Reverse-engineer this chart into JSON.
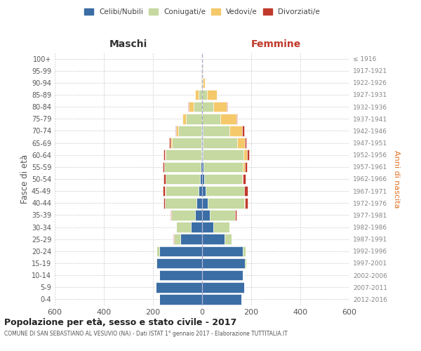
{
  "age_groups": [
    "0-4",
    "5-9",
    "10-14",
    "15-19",
    "20-24",
    "25-29",
    "30-34",
    "35-39",
    "40-44",
    "45-49",
    "50-54",
    "55-59",
    "60-64",
    "65-69",
    "70-74",
    "75-79",
    "80-84",
    "85-89",
    "90-94",
    "95-99",
    "100+"
  ],
  "birth_years": [
    "2012-2016",
    "2007-2011",
    "2002-2006",
    "1997-2001",
    "1992-1996",
    "1987-1991",
    "1982-1986",
    "1977-1981",
    "1972-1976",
    "1967-1971",
    "1962-1966",
    "1957-1961",
    "1952-1956",
    "1947-1951",
    "1942-1946",
    "1937-1941",
    "1932-1936",
    "1927-1931",
    "1922-1926",
    "1917-1921",
    "≤ 1916"
  ],
  "male": {
    "celibi": [
      175,
      190,
      175,
      185,
      175,
      90,
      45,
      30,
      22,
      15,
      8,
      5,
      4,
      3,
      2,
      0,
      0,
      0,
      0,
      0,
      0
    ],
    "coniugati": [
      0,
      0,
      0,
      5,
      10,
      25,
      60,
      95,
      130,
      135,
      140,
      148,
      145,
      120,
      95,
      65,
      35,
      15,
      2,
      1,
      0
    ],
    "vedovi": [
      0,
      0,
      0,
      0,
      0,
      0,
      0,
      0,
      0,
      1,
      1,
      2,
      3,
      6,
      10,
      15,
      20,
      15,
      3,
      1,
      0
    ],
    "divorziati": [
      0,
      0,
      0,
      0,
      0,
      1,
      1,
      3,
      5,
      8,
      8,
      6,
      5,
      4,
      3,
      1,
      1,
      0,
      0,
      0,
      0
    ]
  },
  "female": {
    "nubili": [
      160,
      170,
      165,
      175,
      165,
      90,
      45,
      30,
      22,
      15,
      8,
      5,
      4,
      3,
      2,
      0,
      0,
      0,
      0,
      0,
      0
    ],
    "coniugate": [
      0,
      0,
      0,
      5,
      12,
      30,
      65,
      105,
      150,
      155,
      155,
      162,
      165,
      140,
      110,
      75,
      45,
      20,
      3,
      1,
      0
    ],
    "vedove": [
      0,
      0,
      0,
      0,
      0,
      0,
      0,
      0,
      1,
      2,
      4,
      8,
      15,
      30,
      50,
      65,
      55,
      40,
      8,
      2,
      1
    ],
    "divorziate": [
      0,
      0,
      0,
      0,
      0,
      1,
      2,
      5,
      12,
      15,
      10,
      8,
      8,
      8,
      8,
      3,
      2,
      1,
      0,
      0,
      0
    ]
  },
  "colors": {
    "celibi": "#3B6EA5",
    "coniugati": "#C5D9A0",
    "vedovi": "#F5C96A",
    "divorziati": "#C0392B"
  },
  "xlim": 600,
  "xticks": [
    -600,
    -400,
    -200,
    0,
    200,
    400,
    600
  ],
  "xticklabels": [
    "600",
    "400",
    "200",
    "0",
    "200",
    "400",
    "600"
  ],
  "title": "Popolazione per età, sesso e stato civile - 2017",
  "subtitle": "COMUNE DI SAN SEBASTIANO AL VESUVIO (NA) - Dati ISTAT 1° gennaio 2017 - Elaborazione TUTTITALIA.IT",
  "label_maschi": "Maschi",
  "label_femmine": "Femmine",
  "ylabel_left": "Fasce di età",
  "ylabel_right": "Anni di nascita",
  "legend_labels": [
    "Celibi/Nubili",
    "Coniugati/e",
    "Vedovi/e",
    "Divorziati/e"
  ],
  "background_color": "#ffffff"
}
